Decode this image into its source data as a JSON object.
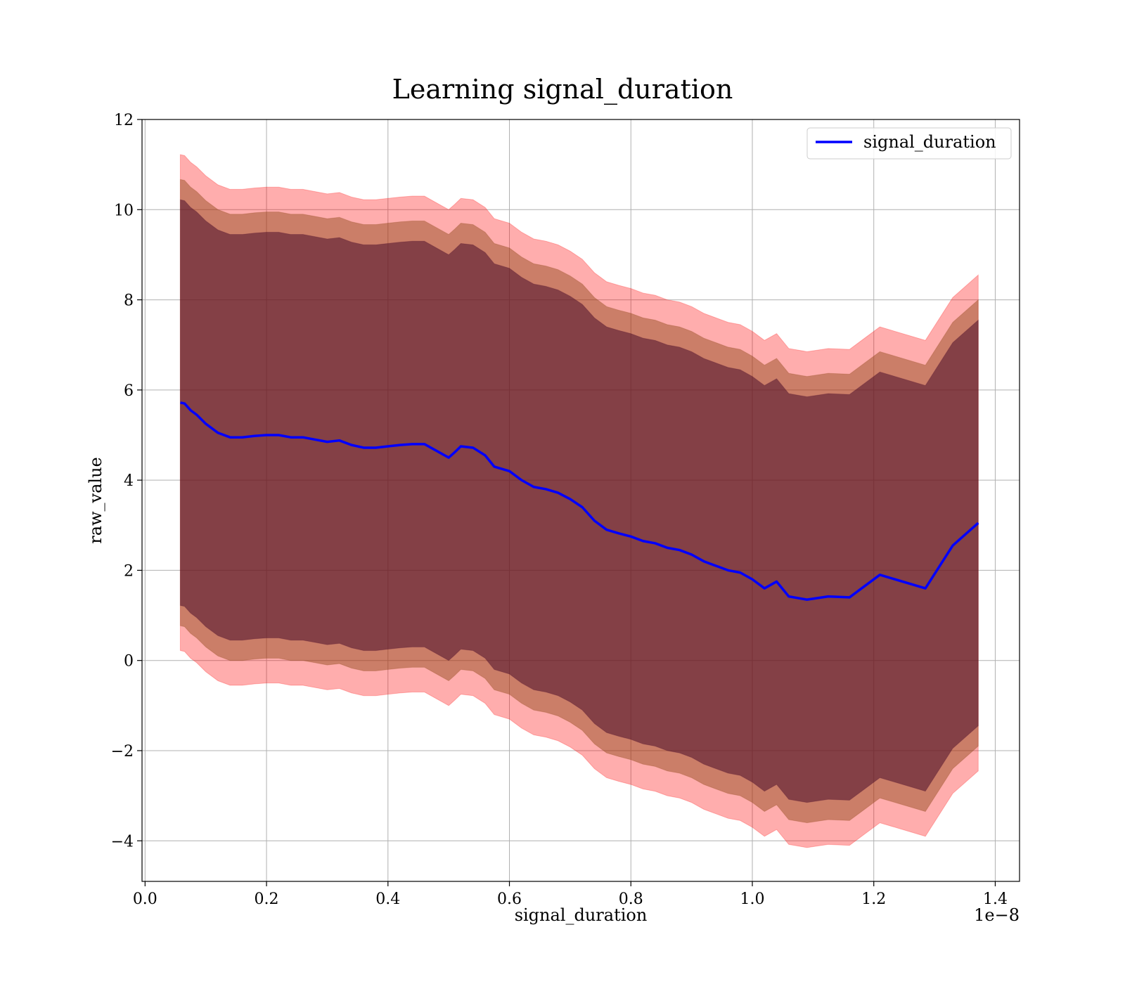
{
  "chart_data": {
    "type": "line",
    "title": "Learning signal_duration",
    "xlabel": "signal_duration",
    "ylabel": "raw_value",
    "x_offset_label": "1e−8",
    "xlim": [
      -0.005,
      1.44
    ],
    "ylim": [
      -4.9,
      12
    ],
    "xticks": [
      0.0,
      0.2,
      0.4,
      0.6,
      0.8,
      1.0,
      1.2,
      1.4
    ],
    "xtick_labels": [
      "0.0",
      "0.2",
      "0.4",
      "0.6",
      "0.8",
      "1.0",
      "1.2",
      "1.4"
    ],
    "yticks": [
      -4,
      -2,
      0,
      2,
      4,
      6,
      8,
      10,
      12
    ],
    "ytick_labels": [
      "−4",
      "−2",
      "0",
      "2",
      "4",
      "6",
      "8",
      "10",
      "12"
    ],
    "grid": true,
    "legend_position": "top-right",
    "colors": {
      "line": "#0000ff",
      "band_outer": "#ff0000",
      "band_middle": "#8b4513",
      "band_inner": "#4b0d2a"
    },
    "series": [
      {
        "name": "signal_duration",
        "x": [
          0.058,
          0.065,
          0.075,
          0.085,
          0.1,
          0.12,
          0.14,
          0.16,
          0.18,
          0.2,
          0.22,
          0.24,
          0.26,
          0.28,
          0.3,
          0.32,
          0.34,
          0.36,
          0.38,
          0.4,
          0.42,
          0.44,
          0.46,
          0.48,
          0.5,
          0.51,
          0.52,
          0.54,
          0.56,
          0.575,
          0.6,
          0.62,
          0.64,
          0.66,
          0.68,
          0.7,
          0.72,
          0.74,
          0.76,
          0.78,
          0.8,
          0.82,
          0.84,
          0.86,
          0.88,
          0.9,
          0.92,
          0.94,
          0.96,
          0.98,
          1.0,
          1.02,
          1.04,
          1.06,
          1.09,
          1.125,
          1.16,
          1.18,
          1.21,
          1.285,
          1.33,
          1.372
        ],
        "y": [
          5.72,
          5.7,
          5.55,
          5.45,
          5.25,
          5.05,
          4.95,
          4.95,
          4.98,
          5.0,
          5.0,
          4.95,
          4.95,
          4.9,
          4.85,
          4.88,
          4.78,
          4.72,
          4.72,
          4.75,
          4.78,
          4.8,
          4.8,
          4.65,
          4.5,
          4.62,
          4.75,
          4.72,
          4.55,
          4.3,
          4.2,
          4.0,
          3.85,
          3.8,
          3.72,
          3.58,
          3.4,
          3.1,
          2.9,
          2.82,
          2.75,
          2.65,
          2.6,
          2.5,
          2.45,
          2.35,
          2.2,
          2.1,
          2.0,
          1.95,
          1.8,
          1.6,
          1.75,
          1.42,
          1.35,
          1.42,
          1.4,
          1.6,
          1.9,
          1.6,
          2.55,
          3.05
        ]
      }
    ],
    "bands": [
      {
        "layer": "outer",
        "half_width_start": 5.5,
        "half_width_end": 5.5
      },
      {
        "layer": "middle",
        "half_width_start": 4.95,
        "half_width_end": 4.95
      },
      {
        "layer": "inner",
        "half_width_start": 4.5,
        "half_width_end": 4.5
      }
    ]
  }
}
